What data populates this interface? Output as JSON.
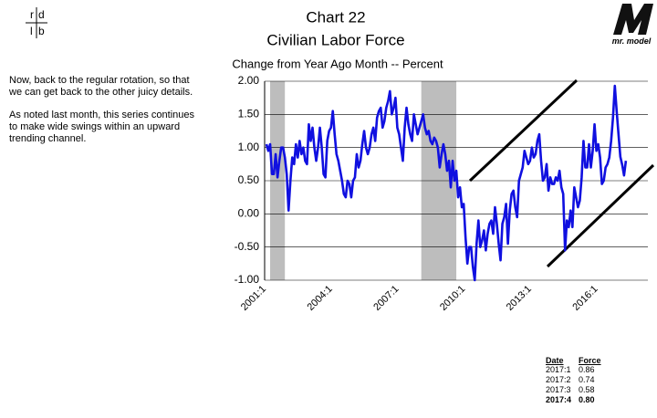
{
  "logo": {
    "letters": [
      "r",
      "d",
      "l",
      "b"
    ],
    "brand": "mr. model"
  },
  "note": [
    "Now, back to the regular rotation, so that we can get back to the other juicy details.",
    "As noted last month, this series continues to make wide swings within an upward trending channel."
  ],
  "chart_data": {
    "type": "line",
    "title": "Chart 22",
    "subtitle": "Civilian Labor Force",
    "y_label": "Change from Year Ago Month -- Percent",
    "categories": [
      "2001:1",
      null,
      null,
      null,
      null,
      null,
      null,
      null,
      null,
      null,
      null,
      null,
      null,
      null,
      null,
      null,
      null,
      null,
      null,
      null,
      null,
      null,
      null,
      null,
      null,
      null,
      null,
      null,
      null,
      null,
      null,
      null,
      null,
      null,
      null,
      null,
      "2004:1",
      null,
      null,
      null,
      null,
      null,
      null,
      null,
      null,
      null,
      null,
      null,
      null,
      null,
      null,
      null,
      null,
      null,
      null,
      null,
      null,
      null,
      null,
      null,
      null,
      null,
      null,
      null,
      null,
      null,
      null,
      null,
      null,
      null,
      null,
      null,
      "2007:1",
      null,
      null,
      null,
      null,
      null,
      null,
      null,
      null,
      null,
      null,
      null,
      null,
      null,
      null,
      null,
      null,
      null,
      null,
      null,
      null,
      null,
      null,
      null,
      null,
      null,
      null,
      null,
      null,
      null,
      null,
      null,
      null,
      null,
      null,
      null,
      "2010:1",
      null,
      null,
      null,
      null,
      null,
      null,
      null,
      null,
      null,
      null,
      null,
      null,
      null,
      null,
      null,
      null,
      null,
      null,
      null,
      null,
      null,
      null,
      null,
      null,
      null,
      null,
      null,
      null,
      null,
      null,
      null,
      null,
      null,
      null,
      null,
      "2013:1",
      null,
      null,
      null,
      null,
      null,
      null,
      null,
      null,
      null,
      null,
      null,
      null,
      null,
      null,
      null,
      null,
      null,
      null,
      null,
      null,
      null,
      null,
      null,
      null,
      null,
      null,
      null,
      null,
      null,
      null,
      null,
      null,
      null,
      null,
      null,
      "2016:1",
      null,
      null,
      null,
      null,
      null,
      null,
      null,
      null,
      null,
      null,
      null,
      null,
      null,
      null,
      null
    ],
    "series": [
      {
        "name": "Force",
        "color": "#1010e0",
        "values": [
          1.05,
          0.95,
          1.05,
          0.6,
          0.6,
          0.9,
          0.55,
          0.8,
          1.0,
          1.0,
          0.85,
          0.6,
          0.05,
          0.5,
          0.85,
          0.75,
          1.05,
          0.85,
          1.1,
          0.9,
          1.0,
          0.8,
          0.75,
          1.35,
          1.1,
          1.3,
          1.0,
          0.8,
          1.0,
          1.3,
          1.0,
          0.6,
          0.55,
          1.1,
          1.25,
          1.3,
          1.55,
          1.2,
          0.9,
          0.8,
          0.65,
          0.5,
          0.3,
          0.25,
          0.5,
          0.45,
          0.25,
          0.5,
          0.55,
          0.9,
          0.7,
          0.8,
          1.05,
          1.25,
          1.0,
          0.9,
          1.0,
          1.2,
          1.3,
          1.1,
          1.45,
          1.55,
          1.6,
          1.3,
          1.4,
          1.6,
          1.7,
          1.85,
          1.5,
          1.6,
          1.75,
          1.3,
          1.2,
          1.0,
          0.8,
          1.3,
          1.6,
          1.35,
          1.2,
          1.1,
          1.5,
          1.35,
          1.2,
          1.3,
          1.4,
          1.5,
          1.3,
          1.2,
          1.25,
          1.1,
          1.05,
          1.15,
          1.1,
          1.0,
          0.7,
          0.9,
          1.05,
          0.9,
          0.65,
          0.8,
          0.4,
          0.8,
          0.5,
          0.65,
          0.25,
          0.4,
          0.1,
          0.15,
          -0.35,
          -0.75,
          -0.5,
          -0.5,
          -0.8,
          -1.0,
          -0.45,
          -0.1,
          -0.5,
          -0.4,
          -0.25,
          -0.55,
          -0.3,
          -0.15,
          -0.1,
          -0.3,
          0.1,
          -0.15,
          -0.45,
          -0.7,
          -0.15,
          -0.05,
          0.15,
          -0.45,
          0.05,
          0.3,
          0.35,
          0.1,
          -0.05,
          0.5,
          0.6,
          0.7,
          0.95,
          0.85,
          0.75,
          0.8,
          1.0,
          0.85,
          0.9,
          1.1,
          1.2,
          0.8,
          0.5,
          0.55,
          0.75,
          0.35,
          0.55,
          0.45,
          0.45,
          0.55,
          0.5,
          0.65,
          0.4,
          0.3,
          -0.55,
          -0.1,
          -0.2,
          0.05,
          -0.2,
          0.4,
          0.25,
          0.1,
          0.2,
          0.55,
          1.1,
          0.7,
          0.7,
          1.05,
          0.7,
          0.95,
          1.35,
          0.95,
          1.05,
          0.85,
          0.45,
          0.5,
          0.7,
          0.75,
          0.85,
          1.1,
          1.45,
          1.93,
          1.55,
          1.2,
          0.86,
          0.74,
          0.58,
          0.8
        ]
      }
    ],
    "ylim": [
      -1.0,
      2.0
    ],
    "yticks": [
      {
        "value": -1.0,
        "label": "-1.00"
      },
      {
        "value": -0.5,
        "label": "-0.50"
      },
      {
        "value": 0,
        "label": "0.00"
      },
      {
        "value": 0.5,
        "label": "0.50"
      },
      {
        "value": 1.0,
        "label": "1.00"
      },
      {
        "value": 1.5,
        "label": "1.50"
      },
      {
        "value": 2.0,
        "label": "2.00"
      }
    ],
    "grid": true
  },
  "table": {
    "header": [
      "Date",
      "Force"
    ],
    "rows": [
      [
        "2017:1",
        "0.86"
      ],
      [
        "2017:2",
        "0.74"
      ],
      [
        "2017:3",
        "0.58"
      ],
      [
        "2017:4",
        "0.80"
      ]
    ]
  }
}
